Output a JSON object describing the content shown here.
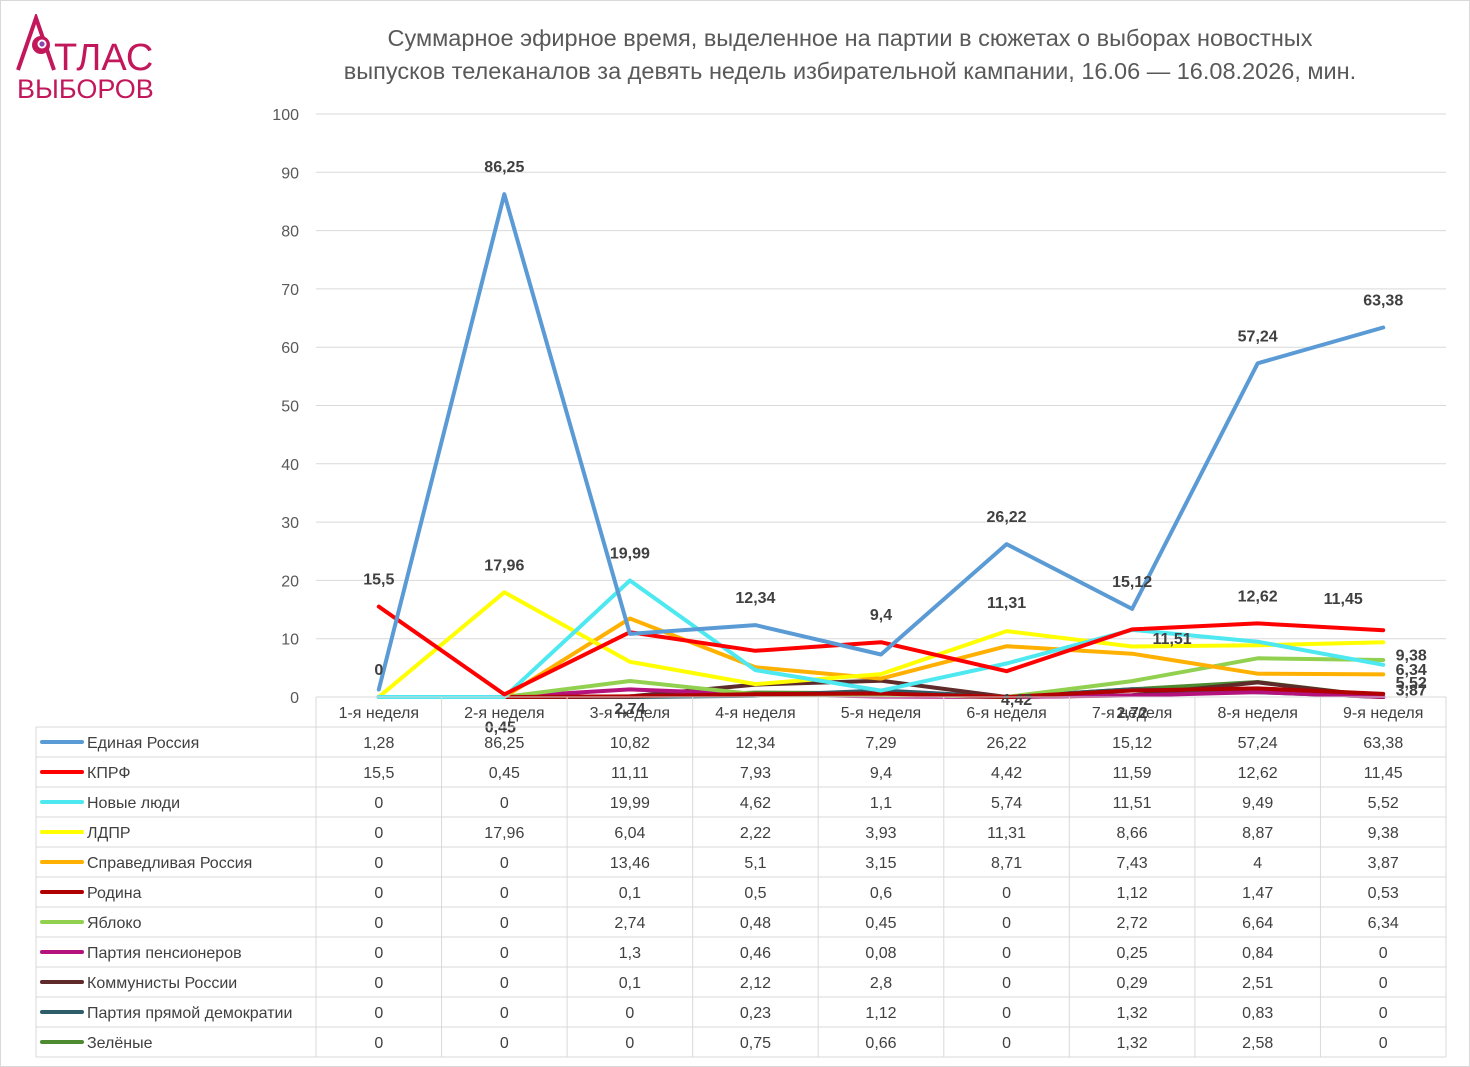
{
  "logo": {
    "line1": "ТЛАС",
    "line2": "ВЫБОРОВ",
    "color": "#c2185b"
  },
  "chart_data": {
    "type": "line",
    "title_lines": [
      "Суммарное эфирное время, выделенное на партии в сюжетах о выборах новостных",
      "выпусков телеканалов за девять недель избирательной кампании, 16.06 — 16.08.2026, мин."
    ],
    "ylim": [
      0,
      100
    ],
    "yticks": [
      0,
      10,
      20,
      30,
      40,
      50,
      60,
      70,
      80,
      90,
      100
    ],
    "grid": true,
    "legend": "data table",
    "categories": [
      "1-я неделя",
      "2-я неделя",
      "3-я неделя",
      "4-я неделя",
      "5-я неделя",
      "6-я неделя",
      "7-я неделя",
      "8-я неделя",
      "9-я неделя"
    ],
    "series": [
      {
        "name": "Единая Россия",
        "color": "#5b9bd5",
        "values": [
          1.28,
          86.25,
          10.82,
          12.34,
          7.29,
          26.22,
          15.12,
          57.24,
          63.38
        ],
        "labels": [
          "1,28",
          "86,25",
          "10,82",
          "12,34",
          "7,29",
          "26,22",
          "15,12",
          "57,24",
          "63,38"
        ]
      },
      {
        "name": "КПРФ",
        "color": "#ff0000",
        "values": [
          15.5,
          0.45,
          11.11,
          7.93,
          9.4,
          4.42,
          11.59,
          12.62,
          11.45
        ],
        "labels": [
          "15,5",
          "0,45",
          "11,11",
          "7,93",
          "9,4",
          "4,42",
          "11,59",
          "12,62",
          "11,45"
        ]
      },
      {
        "name": "Новые люди",
        "color": "#4de8f0",
        "values": [
          0,
          0,
          19.99,
          4.62,
          1.1,
          5.74,
          11.51,
          9.49,
          5.52
        ],
        "labels": [
          "0",
          "0",
          "19,99",
          "4,62",
          "1,1",
          "5,74",
          "11,51",
          "9,49",
          "5,52"
        ]
      },
      {
        "name": "ЛДПР",
        "color": "#ffff00",
        "values": [
          0,
          17.96,
          6.04,
          2.22,
          3.93,
          11.31,
          8.66,
          8.87,
          9.38
        ],
        "labels": [
          "0",
          "17,96",
          "6,04",
          "2,22",
          "3,93",
          "11,31",
          "8,66",
          "8,87",
          "9,38"
        ]
      },
      {
        "name": "Справедливая Россия",
        "color": "#ffb000",
        "values": [
          0,
          0,
          13.46,
          5.1,
          3.15,
          8.71,
          7.43,
          4,
          3.87
        ],
        "labels": [
          "0",
          "0",
          "13,46",
          "5,1",
          "3,15",
          "8,71",
          "7,43",
          "4",
          "3,87"
        ]
      },
      {
        "name": "Родина",
        "color": "#b00000",
        "values": [
          0,
          0,
          0.1,
          0.5,
          0.6,
          0,
          1.12,
          1.47,
          0.53
        ],
        "labels": [
          "0",
          "0",
          "0,1",
          "0,5",
          "0,6",
          "0",
          "1,12",
          "1,47",
          "0,53"
        ]
      },
      {
        "name": "Яблоко",
        "color": "#92d050",
        "values": [
          0,
          0,
          2.74,
          0.48,
          0.45,
          0,
          2.72,
          6.64,
          6.34
        ],
        "labels": [
          "0",
          "0",
          "2,74",
          "0,48",
          "0,45",
          "0",
          "2,72",
          "6,64",
          "6,34"
        ]
      },
      {
        "name": "Партия пенсионеров",
        "color": "#b4127c",
        "values": [
          0,
          0,
          1.3,
          0.46,
          0.08,
          0,
          0.25,
          0.84,
          0
        ],
        "labels": [
          "0",
          "0",
          "1,3",
          "0,46",
          "0,08",
          "0",
          "0,25",
          "0,84",
          "0"
        ]
      },
      {
        "name": "Коммунисты России",
        "color": "#5e2a2a",
        "values": [
          0,
          0,
          0.1,
          2.12,
          2.8,
          0,
          0.29,
          2.51,
          0
        ],
        "labels": [
          "0",
          "0",
          "0,1",
          "2,12",
          "2,8",
          "0",
          "0,29",
          "2,51",
          "0"
        ]
      },
      {
        "name": "Партия прямой демократии",
        "color": "#2e5e6a",
        "values": [
          0,
          0,
          0,
          0.23,
          1.12,
          0,
          1.32,
          0.83,
          0
        ],
        "labels": [
          "0",
          "0",
          "0",
          "0,23",
          "1,12",
          "0",
          "1,32",
          "0,83",
          "0"
        ]
      },
      {
        "name": "Зелёные",
        "color": "#4e8a30",
        "values": [
          0,
          0,
          0,
          0.75,
          0.66,
          0,
          1.32,
          2.58,
          0
        ],
        "labels": [
          "0",
          "0",
          "0",
          "0,75",
          "0,66",
          "0",
          "1,32",
          "2,58",
          "0"
        ]
      }
    ],
    "data_labels": [
      {
        "text": "0",
        "series": 2,
        "point": 0
      },
      {
        "text": "15,5",
        "series": 1,
        "point": 0
      },
      {
        "text": "86,25",
        "series": 0,
        "point": 1
      },
      {
        "text": "17,96",
        "series": 3,
        "point": 1
      },
      {
        "text": "0,45",
        "series": 1,
        "point": 1
      },
      {
        "text": "19,99",
        "series": 2,
        "point": 2
      },
      {
        "text": "2,74",
        "series": 6,
        "point": 2
      },
      {
        "text": "12,34",
        "series": 0,
        "point": 3
      },
      {
        "text": "9,4",
        "series": 1,
        "point": 4
      },
      {
        "text": "26,22",
        "series": 0,
        "point": 5
      },
      {
        "text": "11,31",
        "series": 3,
        "point": 5
      },
      {
        "text": "4,42",
        "series": 1,
        "point": 5
      },
      {
        "text": "15,12",
        "series": 0,
        "point": 6
      },
      {
        "text": "11,51",
        "series": 2,
        "point": 6
      },
      {
        "text": "2,72",
        "series": 6,
        "point": 6
      },
      {
        "text": "57,24",
        "series": 0,
        "point": 7
      },
      {
        "text": "12,62",
        "series": 1,
        "point": 7
      },
      {
        "text": "63,38",
        "series": 0,
        "point": 8
      },
      {
        "text": "11,45",
        "series": 1,
        "point": 8
      },
      {
        "text": "9,38",
        "series": 3,
        "point": 8
      },
      {
        "text": "6,34",
        "series": 6,
        "point": 8
      },
      {
        "text": "5,52",
        "series": 2,
        "point": 8
      },
      {
        "text": "3,87",
        "series": 4,
        "point": 8
      }
    ]
  }
}
